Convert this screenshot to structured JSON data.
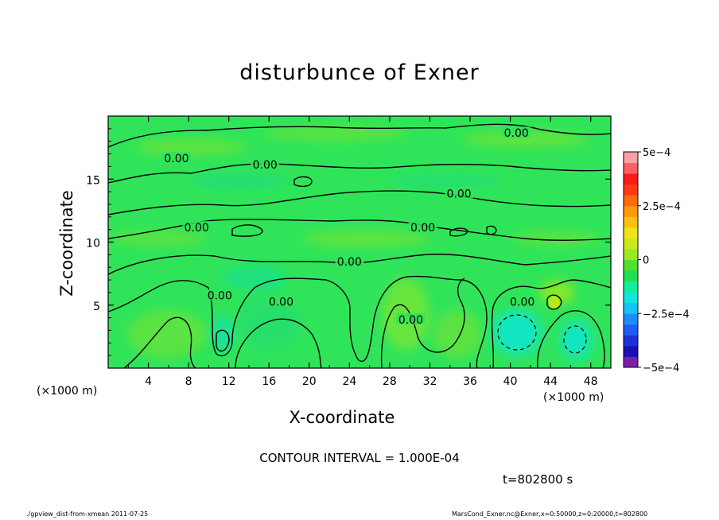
{
  "chart_data": {
    "type": "heatmap",
    "title": "disturbunce of Exner",
    "xlabel": "X-coordinate",
    "ylabel": "Z-coordinate",
    "x_unit": "(×1000 m)",
    "xlim": [
      0,
      50
    ],
    "ylim": [
      0,
      20
    ],
    "x_ticks": [
      4,
      8,
      12,
      16,
      20,
      24,
      28,
      32,
      36,
      40,
      44,
      48
    ],
    "y_ticks": [
      5,
      10,
      15
    ],
    "colorbar": {
      "range": [
        -0.0005,
        0.0005
      ],
      "tick_labels": [
        {
          "value": 0.0005,
          "label": "5e−4"
        },
        {
          "value": 0.00025,
          "label": "2.5e−4"
        },
        {
          "value": 0,
          "label": "0"
        },
        {
          "value": -0.00025,
          "label": "−2.5e−4"
        },
        {
          "value": -0.0005,
          "label": "−5e−4"
        }
      ],
      "colors": [
        "#7c1fa6",
        "#1a12b0",
        "#1e30d8",
        "#1f5ff0",
        "#1c8ef8",
        "#17c2f4",
        "#0fe6dd",
        "#10ee9a",
        "#20e050",
        "#4fe030",
        "#99e820",
        "#c8ea18",
        "#efe31a",
        "#ffc010",
        "#ff9a0a",
        "#ff6a0a",
        "#ff3a12",
        "#f81c1c",
        "#ff5f5f",
        "#ff9fa4"
      ]
    },
    "contour_interval": "1.000E-04",
    "contour_labels": [
      {
        "text": "0.00",
        "x": 40.6,
        "y": 18.6
      },
      {
        "text": "0.00",
        "x": 6.8,
        "y": 16.6
      },
      {
        "text": "0.00",
        "x": 15.6,
        "y": 16.1
      },
      {
        "text": "0.00",
        "x": 34.9,
        "y": 13.8
      },
      {
        "text": "0.00",
        "x": 8.8,
        "y": 11.1
      },
      {
        "text": "0.00",
        "x": 31.3,
        "y": 11.1
      },
      {
        "text": "0.00",
        "x": 24.0,
        "y": 8.4
      },
      {
        "text": "0.00",
        "x": 11.1,
        "y": 5.7
      },
      {
        "text": "0.00",
        "x": 17.2,
        "y": 5.2
      },
      {
        "text": "0.00",
        "x": 30.1,
        "y": 3.8
      },
      {
        "text": "0.00",
        "x": 41.2,
        "y": 5.2
      }
    ],
    "time": "t=802800 s",
    "footer_left": "./gpview_dist-from-xmean  2011-07-25",
    "footer_right": "MarsCond_Exner.nc@Exner,x=0:50000,z=0:20000,t=802800"
  }
}
